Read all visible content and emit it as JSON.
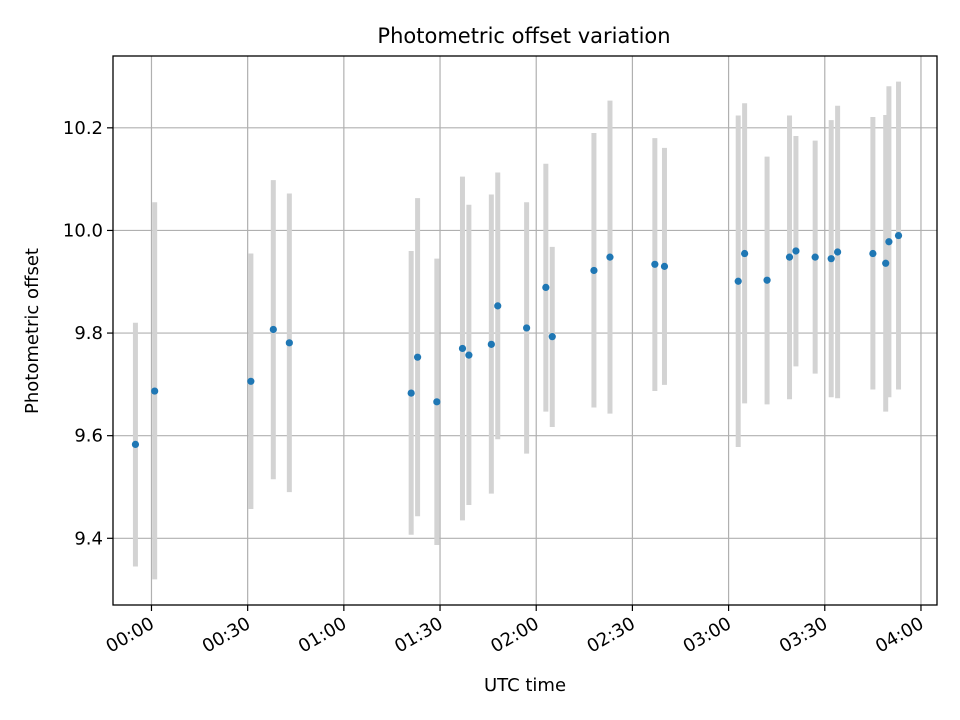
{
  "chart_data": {
    "type": "scatter",
    "title": "Photometric offset variation",
    "xlabel": "UTC time",
    "ylabel": "Photometric offset",
    "xlim": [
      "23:48",
      "04:05"
    ],
    "ylim": [
      9.27,
      10.34
    ],
    "x_ticks": [
      "00:00",
      "00:30",
      "01:00",
      "01:30",
      "02:00",
      "02:30",
      "03:00",
      "03:30",
      "04:00"
    ],
    "y_ticks": [
      "9.4",
      "9.6",
      "9.8",
      "10.0",
      "10.2"
    ],
    "grid": true,
    "legend": "none",
    "colors": {
      "point": "#1f77b4",
      "error_bar": "#d3d3d3",
      "grid": "#b0b0b0"
    },
    "points": [
      {
        "t": "23:55",
        "y": 9.583,
        "lo": 9.345,
        "hi": 9.82
      },
      {
        "t": "00:01",
        "y": 9.687,
        "lo": 9.32,
        "hi": 10.055
      },
      {
        "t": "00:31",
        "y": 9.706,
        "lo": 9.457,
        "hi": 9.955
      },
      {
        "t": "00:38",
        "y": 9.807,
        "lo": 9.515,
        "hi": 10.098
      },
      {
        "t": "00:43",
        "y": 9.781,
        "lo": 9.49,
        "hi": 10.072
      },
      {
        "t": "01:21",
        "y": 9.683,
        "lo": 9.407,
        "hi": 9.96
      },
      {
        "t": "01:23",
        "y": 9.753,
        "lo": 9.443,
        "hi": 10.063
      },
      {
        "t": "01:29",
        "y": 9.666,
        "lo": 9.387,
        "hi": 9.945
      },
      {
        "t": "01:37",
        "y": 9.77,
        "lo": 9.435,
        "hi": 10.105
      },
      {
        "t": "01:39",
        "y": 9.757,
        "lo": 9.465,
        "hi": 10.05
      },
      {
        "t": "01:46",
        "y": 9.778,
        "lo": 9.487,
        "hi": 10.07
      },
      {
        "t": "01:48",
        "y": 9.853,
        "lo": 9.593,
        "hi": 10.113
      },
      {
        "t": "01:57",
        "y": 9.81,
        "lo": 9.565,
        "hi": 10.055
      },
      {
        "t": "02:03",
        "y": 9.889,
        "lo": 9.647,
        "hi": 10.13
      },
      {
        "t": "02:05",
        "y": 9.793,
        "lo": 9.617,
        "hi": 9.968
      },
      {
        "t": "02:18",
        "y": 9.922,
        "lo": 9.655,
        "hi": 10.19
      },
      {
        "t": "02:23",
        "y": 9.948,
        "lo": 9.643,
        "hi": 10.253
      },
      {
        "t": "02:37",
        "y": 9.934,
        "lo": 9.687,
        "hi": 10.18
      },
      {
        "t": "02:40",
        "y": 9.93,
        "lo": 9.699,
        "hi": 10.161
      },
      {
        "t": "03:03",
        "y": 9.901,
        "lo": 9.578,
        "hi": 10.224
      },
      {
        "t": "03:05",
        "y": 9.955,
        "lo": 9.663,
        "hi": 10.248
      },
      {
        "t": "03:12",
        "y": 9.903,
        "lo": 9.661,
        "hi": 10.144
      },
      {
        "t": "03:19",
        "y": 9.948,
        "lo": 9.671,
        "hi": 10.224
      },
      {
        "t": "03:21",
        "y": 9.96,
        "lo": 9.735,
        "hi": 10.184
      },
      {
        "t": "03:27",
        "y": 9.948,
        "lo": 9.721,
        "hi": 10.175
      },
      {
        "t": "03:32",
        "y": 9.945,
        "lo": 9.675,
        "hi": 10.215
      },
      {
        "t": "03:34",
        "y": 9.958,
        "lo": 9.673,
        "hi": 10.243
      },
      {
        "t": "03:45",
        "y": 9.955,
        "lo": 9.69,
        "hi": 10.221
      },
      {
        "t": "03:49",
        "y": 9.936,
        "lo": 9.647,
        "hi": 10.225
      },
      {
        "t": "03:50",
        "y": 9.978,
        "lo": 9.675,
        "hi": 10.281
      },
      {
        "t": "03:53",
        "y": 9.99,
        "lo": 9.69,
        "hi": 10.29
      }
    ]
  }
}
